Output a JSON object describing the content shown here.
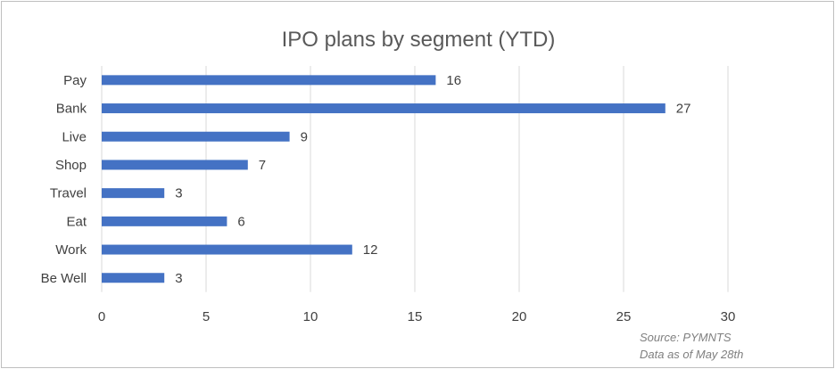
{
  "chart_data": {
    "type": "bar",
    "orientation": "horizontal",
    "title": "IPO plans by segment (YTD)",
    "categories": [
      "Pay",
      "Bank",
      "Live",
      "Shop",
      "Travel",
      "Eat",
      "Work",
      "Be Well"
    ],
    "values": [
      16,
      27,
      9,
      7,
      3,
      6,
      12,
      3
    ],
    "x_ticks": [
      0,
      5,
      10,
      15,
      20,
      25,
      30
    ],
    "xlim": [
      0,
      30
    ],
    "grid": true,
    "data_labels": true,
    "bar_color": "#4472c4",
    "gridline_color": "#d9d9d9"
  },
  "notes": {
    "source": "Source: PYMNTS",
    "date": "Data as of May 28th"
  }
}
